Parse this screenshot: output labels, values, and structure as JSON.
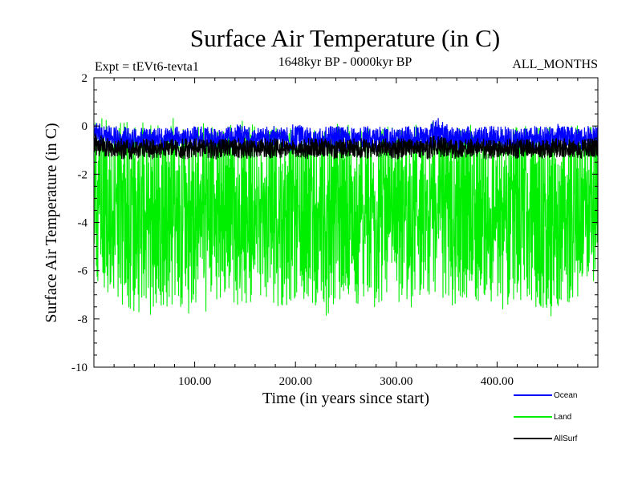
{
  "chart_data": {
    "type": "line",
    "title": "Surface Air Temperature (in C)",
    "subtitle": "1648kyr BP - 0000kyr BP",
    "experiment": "Expt = tEVt6-tevta1",
    "months": "ALL_MONTHS",
    "xlabel": "Time (in years since start)",
    "ylabel": "Surface Air Temperature (in C)",
    "xlim": [
      0,
      500
    ],
    "ylim": [
      -10,
      2
    ],
    "x_ticks": [
      100,
      200,
      300,
      400
    ],
    "x_tick_labels": [
      "100.00",
      "200.00",
      "300.00",
      "400.00"
    ],
    "y_ticks": [
      -10,
      -8,
      -6,
      -4,
      -2,
      0,
      2
    ],
    "y_tick_labels": [
      "-10",
      "-8",
      "-6",
      "-4",
      "-2",
      "0",
      "2"
    ],
    "legend_position": "bottom-right",
    "series": [
      {
        "name": "Land",
        "color": "#00ee00",
        "upper_envelope": [
          0.5,
          0.3,
          0.1,
          0.2,
          0.1,
          0.2,
          0.0,
          0.1,
          0.4,
          0.1,
          0.0,
          0.2,
          0.1,
          0.0,
          0.1,
          0.4,
          0.0,
          0.1,
          0.2,
          0.0,
          0.1,
          0.0,
          0.1,
          0.0,
          0.2,
          0.1,
          0.0,
          0.1,
          0.0,
          0.1,
          0.0,
          0.2,
          0.1,
          0.0,
          0.3,
          0.1,
          0.0,
          0.1,
          0.0,
          0.1,
          0.0,
          0.1,
          0.0,
          0.1,
          0.0,
          0.1,
          0.0,
          0.2,
          0.1,
          0.0,
          0.0
        ],
        "lower_envelope": [
          -6.3,
          -6.8,
          -7.2,
          -7.5,
          -8.0,
          -7.6,
          -8.2,
          -7.4,
          -7.9,
          -8.1,
          -7.3,
          -7.8,
          -7.5,
          -7.1,
          -7.6,
          -7.3,
          -7.7,
          -7.2,
          -7.4,
          -7.8,
          -7.5,
          -7.2,
          -7.6,
          -7.9,
          -7.4,
          -7.1,
          -7.5,
          -7.2,
          -7.7,
          -7.4,
          -7.2,
          -7.8,
          -7.3,
          -7.6,
          -7.0,
          -7.4,
          -7.8,
          -7.2,
          -7.5,
          -7.6,
          -7.3,
          -7.9,
          -7.4,
          -7.2,
          -7.7,
          -8.2,
          -7.5,
          -7.3,
          -7.4,
          -6.5,
          -6.4
        ]
      },
      {
        "name": "Ocean",
        "color": "#0000ff",
        "upper_envelope": [
          0.2,
          0.1,
          0.0,
          0.0,
          -0.1,
          0.0,
          -0.1,
          0.0,
          0.0,
          -0.1,
          0.0,
          0.0,
          -0.1,
          0.0,
          0.1,
          0.0,
          -0.1,
          0.0,
          0.0,
          0.0,
          0.1,
          0.0,
          -0.1,
          0.0,
          0.0,
          0.0,
          -0.1,
          0.0,
          0.0,
          0.0,
          -0.1,
          0.0,
          0.0,
          0.0,
          0.4,
          0.1,
          0.0,
          0.0,
          -0.1,
          0.0,
          0.0,
          0.0,
          -0.1,
          0.0,
          0.0,
          0.0,
          0.1,
          0.0,
          -0.1,
          0.0,
          0.0
        ],
        "lower_envelope": [
          -0.8,
          -0.9,
          -1.0,
          -1.0,
          -1.1,
          -1.0,
          -1.0,
          -1.1,
          -1.0,
          -0.9,
          -1.0,
          -1.0,
          -1.1,
          -1.0,
          -1.0,
          -1.0,
          -1.1,
          -1.0,
          -1.0,
          -1.0,
          -1.1,
          -1.0,
          -1.0,
          -1.0,
          -1.1,
          -1.0,
          -1.0,
          -1.0,
          -1.1,
          -1.0,
          -1.0,
          -1.0,
          -1.1,
          -1.0,
          -1.0,
          -1.0,
          -1.1,
          -1.0,
          -1.0,
          -1.0,
          -1.1,
          -1.0,
          -1.0,
          -1.0,
          -1.1,
          -1.0,
          -1.0,
          -1.0,
          -1.1,
          -1.0,
          -1.0
        ]
      },
      {
        "name": "AllSurf",
        "color": "#000000",
        "upper_envelope": [
          -0.3,
          -0.4,
          -0.5,
          -0.5,
          -0.6,
          -0.5,
          -0.5,
          -0.6,
          -0.5,
          -0.5,
          -0.5,
          -0.5,
          -0.6,
          -0.5,
          -0.5,
          -0.5,
          -0.6,
          -0.5,
          -0.5,
          -0.5,
          -0.6,
          -0.5,
          -0.5,
          -0.5,
          -0.6,
          -0.5,
          -0.5,
          -0.5,
          -0.6,
          -0.5,
          -0.5,
          -0.5,
          -0.6,
          -0.5,
          -0.3,
          -0.5,
          -0.6,
          -0.5,
          -0.5,
          -0.5,
          -0.6,
          -0.5,
          -0.5,
          -0.5,
          -0.6,
          -0.5,
          -0.5,
          -0.5,
          -0.6,
          -0.5,
          -0.5
        ],
        "lower_envelope": [
          -1.2,
          -1.3,
          -1.3,
          -1.4,
          -1.4,
          -1.3,
          -1.4,
          -1.3,
          -1.3,
          -1.4,
          -1.3,
          -1.3,
          -1.4,
          -1.3,
          -1.3,
          -1.4,
          -1.3,
          -1.3,
          -1.4,
          -1.3,
          -1.3,
          -1.4,
          -1.3,
          -1.3,
          -1.4,
          -1.3,
          -1.3,
          -1.4,
          -1.3,
          -1.3,
          -1.4,
          -1.3,
          -1.3,
          -1.4,
          -1.3,
          -1.3,
          -1.4,
          -1.3,
          -1.3,
          -1.4,
          -1.3,
          -1.3,
          -1.4,
          -1.3,
          -1.3,
          -1.4,
          -1.3,
          -1.3,
          -1.4,
          -1.3,
          -1.3
        ]
      }
    ],
    "legend_order": [
      "Ocean",
      "Land",
      "AllSurf"
    ]
  }
}
